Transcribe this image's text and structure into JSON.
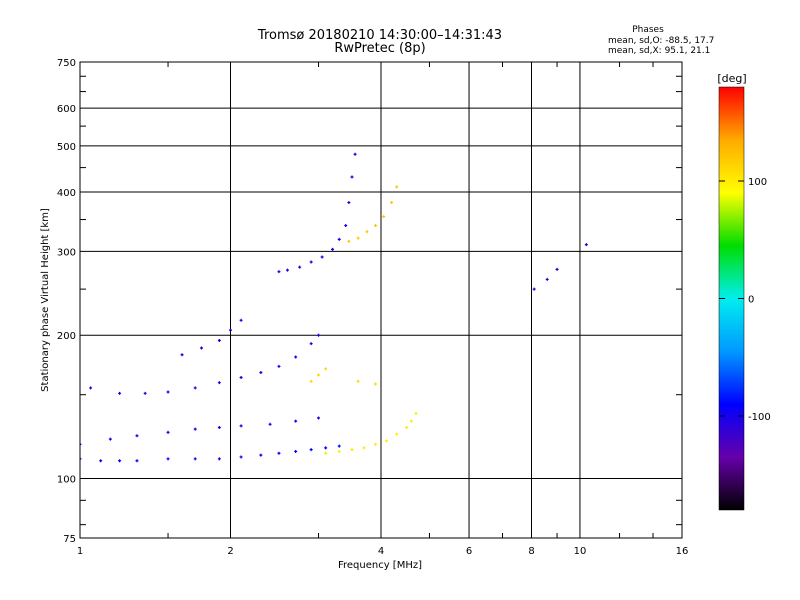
{
  "chart_data": {
    "type": "scatter",
    "title": "Tromsø 20180210 14:30:00–14:31:43",
    "subtitle": "RwPretec (8p)",
    "xlabel": "Frequency [MHz]",
    "ylabel": "Stationary phase Virtual Height [km]",
    "xscale": "log",
    "yscale": "log",
    "xlim": [
      1,
      16
    ],
    "ylim": [
      75,
      750
    ],
    "x_ticks": [
      1,
      2,
      4,
      6,
      8,
      10,
      16
    ],
    "x_tick_labels": [
      "1",
      "2",
      "4",
      "6",
      "8",
      "10",
      "16"
    ],
    "y_ticks": [
      75,
      100,
      200,
      300,
      400,
      500,
      600,
      750
    ],
    "y_tick_labels": [
      "75",
      "100",
      "200",
      "300",
      "400",
      "500",
      "600",
      "750"
    ],
    "grid": true,
    "phase_box": {
      "title": "Phases",
      "line_o": "mean, sd,O:  -88.5, 17.7",
      "line_x": "mean, sd,X:   95.1, 21.1"
    },
    "colorbar": {
      "label": "[deg]",
      "range": [
        -180,
        180
      ],
      "ticks": [
        -100,
        0,
        100
      ],
      "tick_labels": [
        "-100",
        "0",
        "100"
      ],
      "colormap": "rainbow",
      "stops": [
        "#000000",
        "#6600aa",
        "#0000ff",
        "#0099ff",
        "#00eeee",
        "#00dd00",
        "#ffff00",
        "#ffaa00",
        "#ff0000"
      ]
    },
    "traces": [
      {
        "name": "",
        "phase": -90,
        "points": [
          [
            1.0,
            110
          ],
          [
            1.1,
            109
          ],
          [
            1.2,
            109
          ],
          [
            1.3,
            109
          ],
          [
            1.5,
            110
          ],
          [
            1.7,
            110
          ],
          [
            1.9,
            110
          ],
          [
            2.1,
            111
          ],
          [
            2.3,
            112
          ],
          [
            2.5,
            113
          ],
          [
            2.7,
            114
          ],
          [
            2.9,
            115
          ],
          [
            3.1,
            116
          ],
          [
            3.3,
            117
          ]
        ]
      },
      {
        "name": "",
        "phase": 100,
        "points": [
          [
            3.1,
            113
          ],
          [
            3.3,
            114
          ],
          [
            3.5,
            115
          ],
          [
            3.7,
            116
          ],
          [
            3.9,
            118
          ],
          [
            4.1,
            120
          ],
          [
            4.3,
            124
          ],
          [
            4.5,
            128
          ],
          [
            4.6,
            132
          ],
          [
            4.7,
            137
          ]
        ]
      },
      {
        "name": "",
        "phase": -100,
        "points": [
          [
            1.0,
            118
          ],
          [
            1.15,
            121
          ],
          [
            1.3,
            123
          ],
          [
            1.5,
            125
          ],
          [
            1.7,
            127
          ],
          [
            1.9,
            128
          ],
          [
            2.1,
            129
          ],
          [
            2.4,
            130
          ],
          [
            2.7,
            132
          ],
          [
            3.0,
            134
          ]
        ]
      },
      {
        "name": "",
        "phase": -100,
        "points": [
          [
            1.05,
            155
          ],
          [
            1.2,
            151
          ],
          [
            1.35,
            151
          ],
          [
            1.5,
            152
          ],
          [
            1.7,
            155
          ],
          [
            1.9,
            159
          ],
          [
            2.1,
            163
          ],
          [
            2.3,
            167
          ],
          [
            2.5,
            172
          ],
          [
            2.7,
            180
          ],
          [
            2.9,
            192
          ],
          [
            3.0,
            200
          ]
        ]
      },
      {
        "name": "",
        "phase": 110,
        "points": [
          [
            2.9,
            160
          ],
          [
            3.0,
            165
          ],
          [
            3.1,
            170
          ],
          [
            3.6,
            160
          ],
          [
            3.9,
            158
          ]
        ]
      },
      {
        "name": "",
        "phase": -95,
        "points": [
          [
            1.6,
            182
          ],
          [
            1.75,
            188
          ],
          [
            1.9,
            195
          ],
          [
            2.0,
            205
          ],
          [
            2.1,
            215
          ]
        ]
      },
      {
        "name": "",
        "phase": -100,
        "points": [
          [
            2.5,
            272
          ],
          [
            2.6,
            274
          ],
          [
            2.75,
            278
          ],
          [
            2.9,
            285
          ],
          [
            3.05,
            292
          ],
          [
            3.2,
            303
          ],
          [
            3.3,
            318
          ],
          [
            3.4,
            340
          ],
          [
            3.45,
            380
          ],
          [
            3.5,
            430
          ],
          [
            3.55,
            480
          ]
        ]
      },
      {
        "name": "",
        "phase": 120,
        "points": [
          [
            3.45,
            315
          ],
          [
            3.6,
            320
          ],
          [
            3.75,
            330
          ],
          [
            3.9,
            340
          ],
          [
            4.05,
            355
          ],
          [
            4.2,
            380
          ],
          [
            4.3,
            410
          ]
        ]
      },
      {
        "name": "",
        "phase": -105,
        "points": [
          [
            8.1,
            250
          ],
          [
            8.6,
            262
          ],
          [
            9.0,
            275
          ],
          [
            10.3,
            310
          ]
        ]
      }
    ]
  }
}
